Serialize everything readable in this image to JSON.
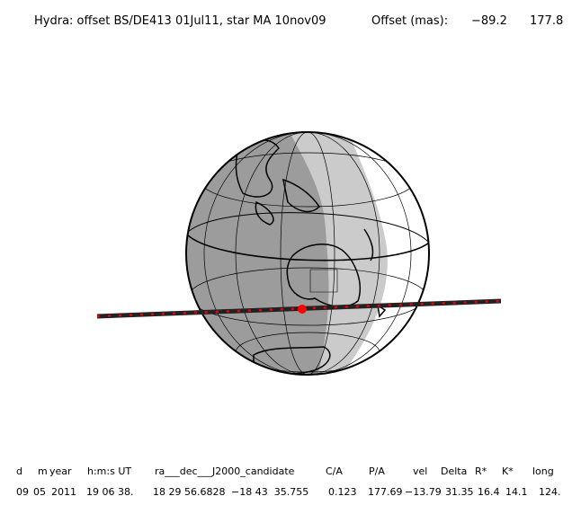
{
  "header": {
    "title": "Hydra: offset BS/DE413 01Jul11, star MA 10nov09",
    "offset_label": "Offset (mas):",
    "offset_values": [
      "−89.2",
      "177.8"
    ]
  },
  "table": {
    "columns": [
      "d",
      "m",
      "year",
      "h:m:s UT",
      "ra___dec___J2000_candidate",
      "C/A",
      "P/A",
      "vel",
      "Delta",
      "R*",
      "K*",
      "long"
    ],
    "rows": [
      [
        "09",
        "05",
        "2011",
        "19 06 38.",
        "18 29 56.6828",
        "−18 43  35.755",
        "0.123",
        "177.69",
        "−13.79",
        "31.35",
        "16.4",
        "14.1",
        "124."
      ]
    ]
  }
}
